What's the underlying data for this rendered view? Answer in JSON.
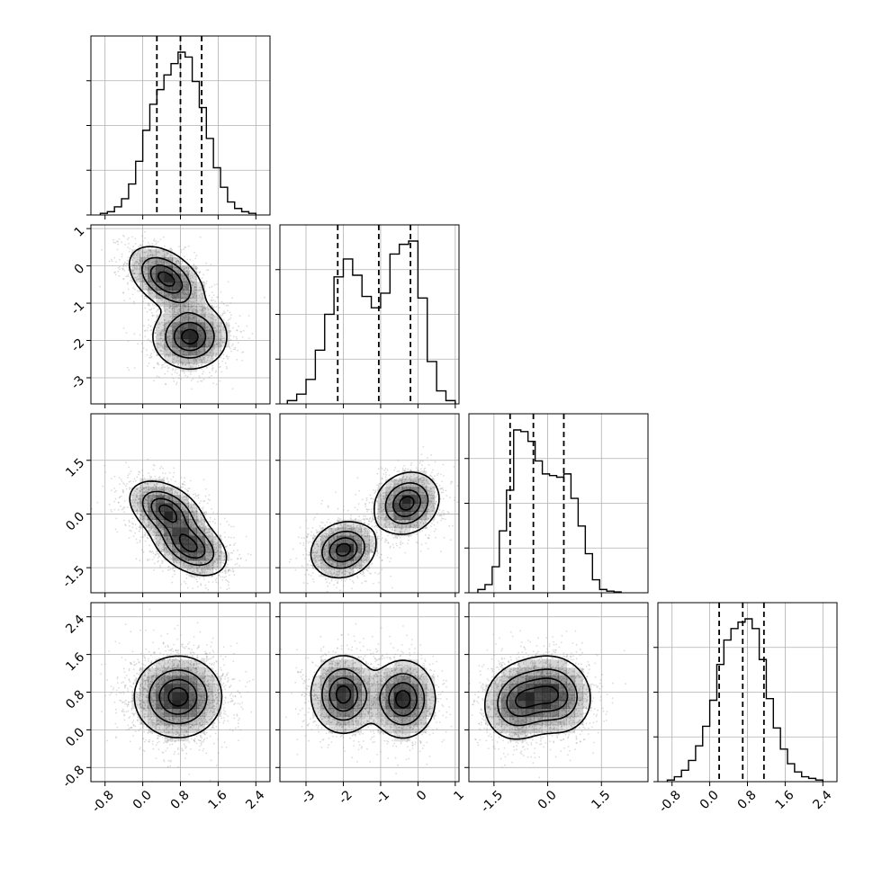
{
  "chart_data": {
    "type": "corner",
    "grid": true,
    "axis_ticks": [
      [
        "-0.8",
        "0.0",
        "0.8",
        "1.6",
        "2.4"
      ],
      [
        "-3",
        "-2",
        "-1",
        "0",
        "1"
      ],
      [
        "-1.5",
        "0.0",
        "1.5"
      ],
      [
        "-0.8",
        "0.0",
        "0.8",
        "1.6",
        "2.4"
      ]
    ],
    "axis_tick_values": [
      [
        -0.8,
        0.0,
        0.8,
        1.6,
        2.4
      ],
      [
        -3,
        -2,
        -1,
        0,
        1
      ],
      [
        -1.5,
        0.0,
        1.5
      ],
      [
        -0.8,
        0.0,
        0.8,
        1.6,
        2.4
      ]
    ],
    "axis_ranges": [
      [
        -1.1,
        2.7
      ],
      [
        -3.7,
        1.1
      ],
      [
        -2.2,
        2.8
      ],
      [
        -1.1,
        2.7
      ]
    ],
    "y_tick_rows": [
      {
        "row": 1,
        "ticks": [
          "-3",
          "-2",
          "-1",
          "0",
          "1"
        ],
        "values": [
          -3,
          -2,
          -1,
          0,
          1
        ],
        "range": [
          -3.7,
          1.1
        ]
      },
      {
        "row": 2,
        "ticks": [
          "-1.5",
          "0.0",
          "1.5"
        ],
        "values": [
          -1.5,
          0.0,
          1.5
        ],
        "range": [
          -2.2,
          2.8
        ]
      },
      {
        "row": 3,
        "ticks": [
          "-0.8",
          "0.0",
          "0.8",
          "1.6",
          "2.4"
        ],
        "values": [
          -0.8,
          0.0,
          0.8,
          1.6,
          2.4
        ],
        "range": [
          -1.1,
          2.7
        ]
      }
    ],
    "diagonal": [
      {
        "param": 0,
        "quantiles": [
          0.3,
          0.8,
          1.25
        ],
        "bin_edges": [
          -0.9,
          -0.75,
          -0.6,
          -0.45,
          -0.3,
          -0.15,
          0.0,
          0.15,
          0.3,
          0.45,
          0.6,
          0.75,
          0.9,
          1.05,
          1.2,
          1.35,
          1.5,
          1.65,
          1.8,
          1.95,
          2.1,
          2.25,
          2.4
        ],
        "counts": [
          0.01,
          0.02,
          0.05,
          0.1,
          0.19,
          0.33,
          0.52,
          0.68,
          0.77,
          0.86,
          0.93,
          1.0,
          0.97,
          0.82,
          0.66,
          0.47,
          0.29,
          0.17,
          0.08,
          0.04,
          0.02,
          0.01
        ]
      },
      {
        "param": 1,
        "quantiles": [
          -2.15,
          -1.05,
          -0.2
        ],
        "bin_edges": [
          -3.5,
          -3.25,
          -3.0,
          -2.75,
          -2.5,
          -2.25,
          -2.0,
          -1.75,
          -1.5,
          -1.25,
          -1.0,
          -0.75,
          -0.5,
          -0.25,
          0.0,
          0.25,
          0.5,
          0.75,
          1.0
        ],
        "counts": [
          0.02,
          0.06,
          0.15,
          0.33,
          0.55,
          0.78,
          0.89,
          0.79,
          0.66,
          0.59,
          0.68,
          0.92,
          0.98,
          1.0,
          0.65,
          0.26,
          0.08,
          0.02
        ]
      },
      {
        "param": 2,
        "quantiles": [
          -1.05,
          -0.4,
          0.45
        ],
        "bin_edges": [
          -1.95,
          -1.75,
          -1.55,
          -1.35,
          -1.15,
          -0.95,
          -0.75,
          -0.55,
          -0.35,
          -0.15,
          0.05,
          0.25,
          0.45,
          0.65,
          0.85,
          1.05,
          1.25,
          1.45,
          1.65,
          1.85,
          2.05
        ],
        "counts": [
          0.02,
          0.05,
          0.16,
          0.38,
          0.63,
          1.0,
          0.99,
          0.93,
          0.81,
          0.73,
          0.72,
          0.71,
          0.73,
          0.58,
          0.41,
          0.24,
          0.08,
          0.02,
          0.01,
          0.005
        ]
      },
      {
        "param": 3,
        "quantiles": [
          0.2,
          0.7,
          1.15
        ],
        "bin_edges": [
          -0.9,
          -0.75,
          -0.6,
          -0.45,
          -0.3,
          -0.15,
          0.0,
          0.15,
          0.3,
          0.45,
          0.6,
          0.75,
          0.9,
          1.05,
          1.2,
          1.35,
          1.5,
          1.65,
          1.8,
          1.95,
          2.1,
          2.25,
          2.4
        ],
        "counts": [
          0.01,
          0.03,
          0.07,
          0.13,
          0.22,
          0.34,
          0.5,
          0.72,
          0.87,
          0.94,
          0.98,
          1.0,
          0.94,
          0.75,
          0.51,
          0.33,
          0.2,
          0.11,
          0.06,
          0.03,
          0.02,
          0.01
        ]
      }
    ],
    "pairs": [
      {
        "row": 1,
        "col": 0,
        "components": [
          {
            "mu": [
              0.5,
              -0.35
            ],
            "sigma": [
              0.38,
              0.42
            ],
            "rho": -0.45,
            "weight": 0.5
          },
          {
            "mu": [
              1.0,
              -1.9
            ],
            "sigma": [
              0.38,
              0.42
            ],
            "rho": 0.0,
            "weight": 0.5
          }
        ]
      },
      {
        "row": 2,
        "col": 0,
        "components": [
          {
            "mu": [
              0.5,
              0.1
            ],
            "sigma": [
              0.38,
              0.4
            ],
            "rho": -0.4,
            "weight": 0.5
          },
          {
            "mu": [
              1.0,
              -0.9
            ],
            "sigma": [
              0.38,
              0.4
            ],
            "rho": -0.4,
            "weight": 0.5
          }
        ]
      },
      {
        "row": 2,
        "col": 1,
        "components": [
          {
            "mu": [
              -2.0,
              -1.0
            ],
            "sigma": [
              0.42,
              0.38
            ],
            "rho": 0.15,
            "weight": 0.5
          },
          {
            "mu": [
              -0.3,
              0.3
            ],
            "sigma": [
              0.42,
              0.42
            ],
            "rho": 0.15,
            "weight": 0.5
          }
        ]
      },
      {
        "row": 3,
        "col": 0,
        "components": [
          {
            "mu": [
              0.75,
              0.7
            ],
            "sigma": [
              0.45,
              0.42
            ],
            "rho": 0.0,
            "weight": 1.0
          }
        ]
      },
      {
        "row": 3,
        "col": 1,
        "components": [
          {
            "mu": [
              -2.0,
              0.75
            ],
            "sigma": [
              0.42,
              0.4
            ],
            "rho": 0.0,
            "weight": 0.5
          },
          {
            "mu": [
              -0.4,
              0.65
            ],
            "sigma": [
              0.42,
              0.4
            ],
            "rho": 0.0,
            "weight": 0.5
          }
        ]
      },
      {
        "row": 3,
        "col": 2,
        "components": [
          {
            "mu": [
              -0.8,
              0.6
            ],
            "sigma": [
              0.48,
              0.4
            ],
            "rho": 0.1,
            "weight": 0.5
          },
          {
            "mu": [
              0.2,
              0.75
            ],
            "sigma": [
              0.5,
              0.4
            ],
            "rho": -0.1,
            "weight": 0.5
          }
        ]
      }
    ],
    "colors": {
      "points": "#9a9a9a",
      "contour": "#000000",
      "density": "#222222",
      "grid": "#b0b0b0",
      "frame": "#000000"
    },
    "contour_levels_fraction": [
      0.12,
      0.4,
      0.68,
      0.9
    ]
  }
}
